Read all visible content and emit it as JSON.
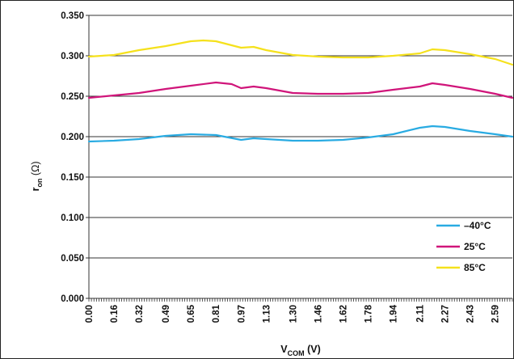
{
  "chart_data": {
    "type": "line",
    "title": "",
    "xlabel_main": "V",
    "xlabel_sub": "COM",
    "xlabel_unit": " (V)",
    "ylabel_main": "r",
    "ylabel_sub": "on",
    "ylabel_unit": " (Ω)",
    "xlim": [
      0,
      2.7
    ],
    "ylim": [
      0,
      0.35
    ],
    "grid": true,
    "legend_position": "bottom-right",
    "x_tick_labels": [
      "0.00",
      "0.16",
      "0.32",
      "0.49",
      "0.65",
      "0.81",
      "0.97",
      "1.13",
      "1.30",
      "1.46",
      "1.62",
      "1.78",
      "1.94",
      "2.11",
      "2.27",
      "2.43",
      "2.59"
    ],
    "x_tick_values": [
      0.0,
      0.16,
      0.32,
      0.49,
      0.65,
      0.81,
      0.97,
      1.13,
      1.3,
      1.46,
      1.62,
      1.78,
      1.94,
      2.11,
      2.27,
      2.43,
      2.59
    ],
    "y_tick_labels": [
      "0.000",
      "0.050",
      "0.100",
      "0.150",
      "0.200",
      "0.250",
      "0.300",
      "0.350"
    ],
    "y_tick_values": [
      0,
      0.05,
      0.1,
      0.15,
      0.2,
      0.25,
      0.3,
      0.35
    ],
    "series": [
      {
        "name": "–40°C",
        "color": "#29abe2",
        "x": [
          0.0,
          0.16,
          0.32,
          0.49,
          0.65,
          0.81,
          0.97,
          1.05,
          1.13,
          1.3,
          1.46,
          1.62,
          1.78,
          1.94,
          2.11,
          2.19,
          2.27,
          2.43,
          2.59,
          2.7
        ],
        "y": [
          0.194,
          0.195,
          0.197,
          0.201,
          0.203,
          0.202,
          0.196,
          0.198,
          0.197,
          0.195,
          0.195,
          0.196,
          0.199,
          0.203,
          0.211,
          0.213,
          0.212,
          0.207,
          0.203,
          0.2
        ]
      },
      {
        "name": "25°C",
        "color": "#d0157a",
        "x": [
          0.0,
          0.16,
          0.32,
          0.49,
          0.65,
          0.81,
          0.91,
          0.97,
          1.05,
          1.13,
          1.3,
          1.46,
          1.62,
          1.78,
          1.94,
          2.11,
          2.19,
          2.27,
          2.43,
          2.59,
          2.7
        ],
        "y": [
          0.248,
          0.251,
          0.254,
          0.259,
          0.263,
          0.267,
          0.265,
          0.26,
          0.262,
          0.26,
          0.254,
          0.253,
          0.253,
          0.254,
          0.258,
          0.262,
          0.266,
          0.264,
          0.259,
          0.253,
          0.248
        ]
      },
      {
        "name": "85°C",
        "color": "#f5e11c",
        "x": [
          0.0,
          0.16,
          0.32,
          0.49,
          0.65,
          0.73,
          0.81,
          0.97,
          1.05,
          1.13,
          1.3,
          1.46,
          1.62,
          1.78,
          1.94,
          2.11,
          2.19,
          2.27,
          2.43,
          2.59,
          2.7
        ],
        "y": [
          0.299,
          0.301,
          0.307,
          0.312,
          0.318,
          0.319,
          0.318,
          0.31,
          0.311,
          0.307,
          0.301,
          0.299,
          0.298,
          0.298,
          0.3,
          0.303,
          0.308,
          0.307,
          0.302,
          0.296,
          0.289
        ]
      }
    ]
  }
}
